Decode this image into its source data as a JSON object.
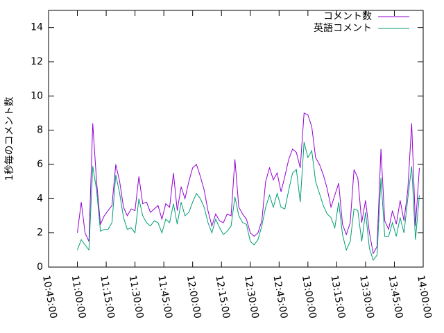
{
  "chart_data": {
    "type": "line",
    "ylabel": "1秒毎のコメント数",
    "x_start": "11:00:00",
    "x_step_minutes": 2,
    "xlim": [
      "10:45:00",
      "14:00:00"
    ],
    "xticks": [
      "10:45:00",
      "11:00:00",
      "11:15:00",
      "11:30:00",
      "11:45:00",
      "12:00:00",
      "12:15:00",
      "12:30:00",
      "12:45:00",
      "13:00:00",
      "13:15:00",
      "13:30:00",
      "13:45:00",
      "14:00:00"
    ],
    "ylim": [
      0,
      15
    ],
    "yticks": [
      0,
      2,
      4,
      6,
      8,
      10,
      12,
      14
    ],
    "legend": "top-right",
    "series": [
      {
        "name": "コメント数",
        "color": "#9400d3",
        "values": [
          2.0,
          3.8,
          2.0,
          1.5,
          8.4,
          5.0,
          2.5,
          3.0,
          3.3,
          3.6,
          6.0,
          5.0,
          3.5,
          3.0,
          3.4,
          3.3,
          5.3,
          3.7,
          3.8,
          3.2,
          3.4,
          3.6,
          2.8,
          3.7,
          3.5,
          5.5,
          3.3,
          4.7,
          4.0,
          5.0,
          5.8,
          6.0,
          5.3,
          4.5,
          3.3,
          2.4,
          3.1,
          2.7,
          2.6,
          3.1,
          3.0,
          6.3,
          3.5,
          3.1,
          2.8,
          2.0,
          1.8,
          2.0,
          2.7,
          5.0,
          5.8,
          5.1,
          5.5,
          4.4,
          5.3,
          6.3,
          6.9,
          6.7,
          5.8,
          9.0,
          8.9,
          8.2,
          6.4,
          6.0,
          5.4,
          4.6,
          3.5,
          4.2,
          4.9,
          2.5,
          1.9,
          2.6,
          5.7,
          5.2,
          2.6,
          3.9,
          2.0,
          0.8,
          1.2,
          6.9,
          2.7,
          2.2,
          3.3,
          2.5,
          3.9,
          2.7,
          4.5,
          8.4,
          2.4,
          5.8
        ]
      },
      {
        "name": "英語コメント",
        "color": "#009e73",
        "values": [
          1.0,
          1.6,
          1.3,
          1.0,
          5.9,
          4.5,
          2.1,
          2.2,
          2.2,
          2.6,
          5.4,
          4.3,
          2.9,
          2.2,
          2.3,
          2.0,
          4.0,
          3.0,
          2.6,
          2.4,
          2.7,
          2.6,
          2.0,
          2.8,
          2.6,
          3.7,
          2.5,
          3.8,
          3.0,
          3.2,
          3.8,
          4.3,
          4.0,
          3.5,
          2.6,
          2.0,
          2.8,
          2.3,
          1.9,
          2.1,
          2.4,
          4.1,
          3.0,
          2.6,
          2.5,
          1.5,
          1.3,
          1.6,
          2.4,
          3.5,
          4.2,
          3.5,
          4.3,
          3.5,
          3.4,
          4.5,
          5.5,
          5.7,
          3.8,
          7.3,
          6.4,
          6.8,
          5.0,
          4.3,
          3.6,
          3.1,
          2.9,
          2.3,
          3.8,
          1.9,
          1.0,
          1.5,
          3.4,
          3.3,
          1.5,
          3.2,
          1.1,
          0.4,
          0.7,
          5.2,
          1.8,
          1.8,
          2.6,
          1.8,
          2.9,
          2.0,
          4.0,
          5.9,
          1.6,
          4.2
        ]
      }
    ]
  }
}
